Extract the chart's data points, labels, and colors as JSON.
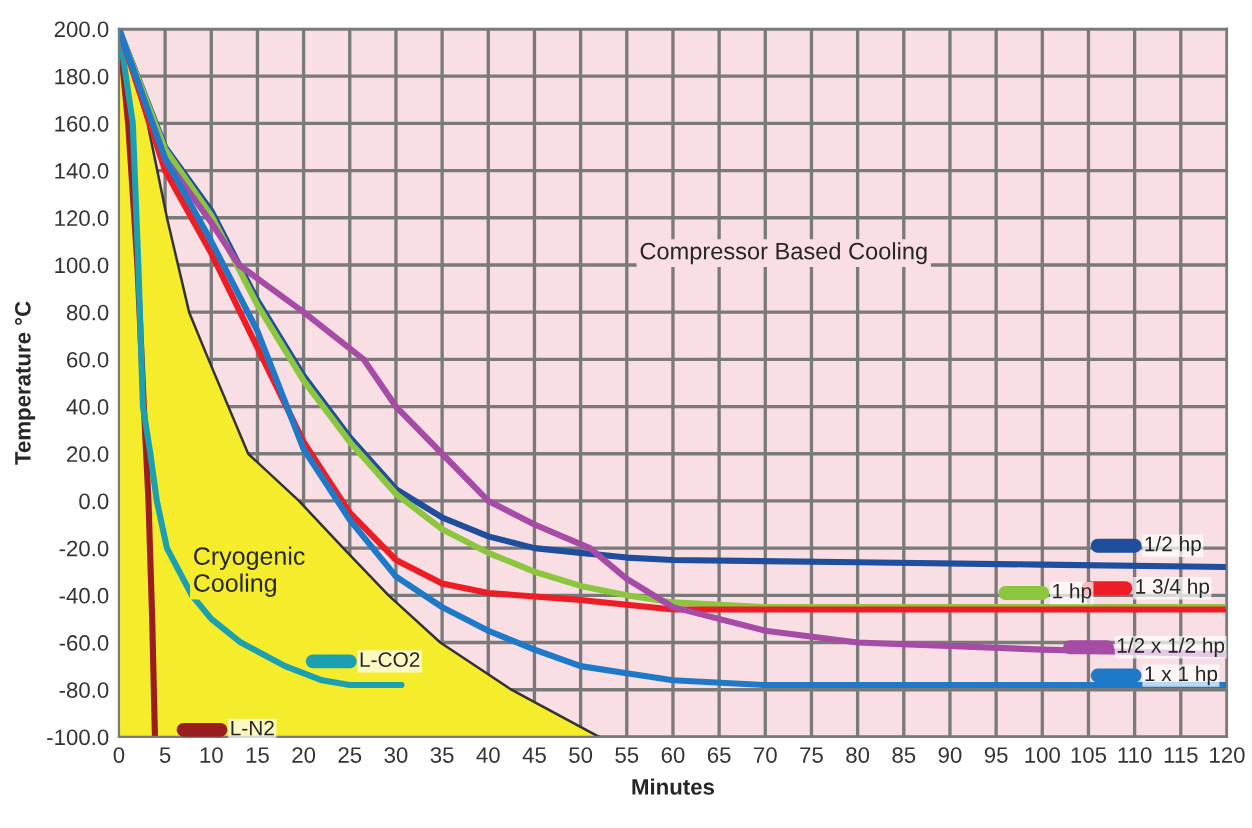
{
  "chart_data": {
    "type": "line",
    "xlabel": "Minutes",
    "ylabel": "Temperature °C",
    "xlim": [
      0,
      120
    ],
    "xticks": [
      0,
      5,
      10,
      15,
      20,
      25,
      30,
      35,
      40,
      45,
      50,
      55,
      60,
      65,
      70,
      75,
      80,
      85,
      90,
      95,
      100,
      105,
      110,
      115,
      120
    ],
    "ylim": [
      -100,
      200
    ],
    "yticks": [
      {
        "value": -100,
        "label": "-100.0"
      },
      {
        "value": -80,
        "label": "-80.0"
      },
      {
        "value": -60,
        "label": "-60.0"
      },
      {
        "value": -40,
        "label": "-40.0"
      },
      {
        "value": -20,
        "label": "-20.0"
      },
      {
        "value": 0,
        "label": "0.0"
      },
      {
        "value": 20,
        "label": "20.0"
      },
      {
        "value": 40,
        "label": "40.0"
      },
      {
        "value": 60,
        "label": "60.0"
      },
      {
        "value": 80,
        "label": "80.0"
      },
      {
        "value": 100,
        "label": "100.0"
      },
      {
        "value": 120,
        "label": "120.0"
      },
      {
        "value": 140,
        "label": "140.0"
      },
      {
        "value": 160,
        "label": "160.0"
      },
      {
        "value": 180,
        "label": "180.0"
      },
      {
        "value": 200,
        "label": "200.0"
      }
    ],
    "grid": true,
    "legend": "bottom",
    "annotations": [
      "Cryogenic\nCooling",
      "Compressor Based Cooling"
    ],
    "series": [
      {
        "type": "line",
        "color": "#333333",
        "x": [
          0,
          3.1,
          5.2,
          7.6,
          9.7,
          14,
          19.5,
          24.3,
          29.2,
          34.8,
          42.5,
          52
        ],
        "values": [
          200,
          160,
          120,
          80,
          60,
          20,
          0,
          -20,
          -40,
          -60,
          -80,
          -100
        ]
      },
      {
        "name": "L-N2",
        "color": "#9b1c1c",
        "x": [
          0,
          1,
          2,
          2.7,
          3.2,
          3.6,
          3.9
        ],
        "values": [
          200,
          160,
          100,
          40,
          0,
          -50,
          -100
        ]
      },
      {
        "name": "L-CO2",
        "color": "#1aa0b0",
        "x": [
          0,
          1.5,
          2.1,
          2.6,
          3.4,
          4.1,
          5.2,
          7.9,
          10,
          13.2,
          18,
          22,
          25,
          30.6
        ],
        "values": [
          200,
          160,
          100,
          40,
          20,
          0,
          -20,
          -40,
          -50,
          -60,
          -70,
          -76,
          -78,
          -78
        ]
      },
      {
        "name": "1/2 hp",
        "color": "#1f4e9c",
        "x": [
          0,
          5,
          10,
          15,
          20,
          25,
          30,
          35,
          40,
          45,
          50,
          55,
          60,
          80,
          100,
          120
        ],
        "values": [
          200,
          150,
          123,
          85,
          53,
          27,
          5,
          -7,
          -15,
          -20,
          -22,
          -24,
          -25,
          -26,
          -27,
          -28
        ]
      },
      {
        "name": "1 hp",
        "color": "#8cc63f",
        "x": [
          0,
          5,
          10,
          15,
          20,
          25,
          30,
          35,
          40,
          45,
          50,
          55,
          60,
          70,
          80,
          120
        ],
        "values": [
          200,
          149,
          121,
          83,
          51,
          25,
          3,
          -12,
          -22,
          -30,
          -36,
          -40,
          -43,
          -45,
          -45,
          -45
        ]
      },
      {
        "name": "1 3/4 hp",
        "color": "#ee1c25",
        "x": [
          0,
          5,
          10,
          15,
          20,
          25,
          30,
          35,
          40,
          50,
          60,
          80,
          120
        ],
        "values": [
          200,
          140,
          105,
          65,
          25,
          -5,
          -25,
          -35,
          -39,
          -42,
          -46,
          -46,
          -46
        ]
      },
      {
        "name": "1/2 x 1/2 hp",
        "color": "#a64ca6",
        "x": [
          0,
          5,
          10,
          13,
          20,
          26.5,
          30,
          35,
          40,
          45,
          51,
          55,
          60,
          70,
          80,
          100,
          120
        ],
        "values": [
          200,
          145,
          118,
          100,
          80,
          60,
          40,
          20,
          0,
          -10,
          -20,
          -33,
          -45,
          -55,
          -60,
          -63,
          -65
        ]
      },
      {
        "name": "1 x 1 hp",
        "color": "#1e7ac8",
        "x": [
          0,
          5,
          10,
          15,
          20,
          25,
          30,
          35,
          40,
          45,
          50,
          55,
          60,
          70,
          120
        ],
        "values": [
          200,
          145,
          110,
          72,
          22,
          -8,
          -32,
          -45,
          -55,
          -63,
          -70,
          -73,
          -76,
          -78,
          -78
        ]
      }
    ]
  }
}
